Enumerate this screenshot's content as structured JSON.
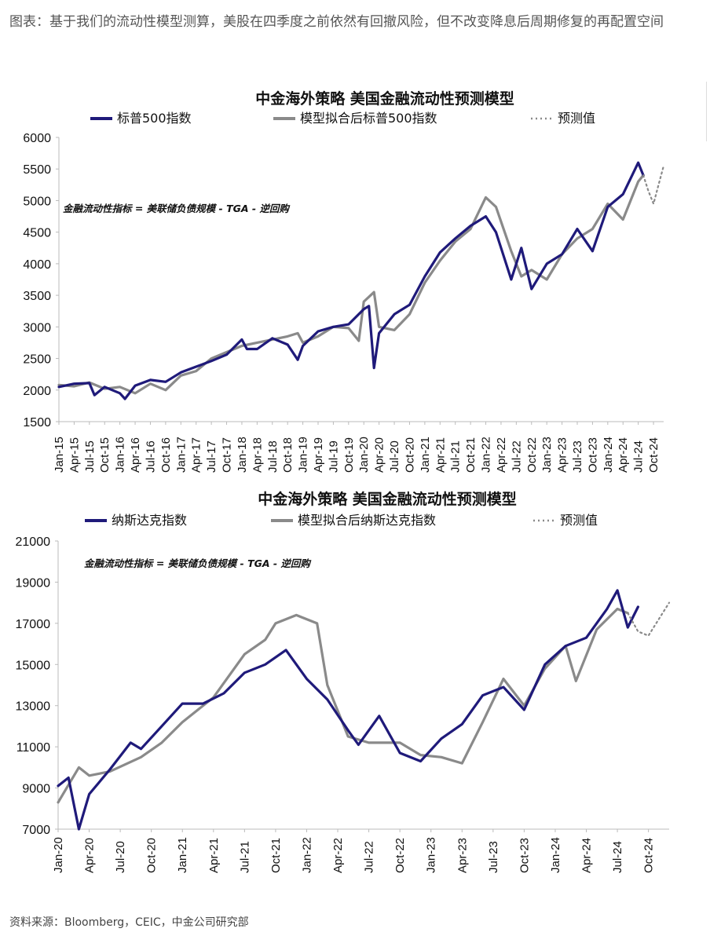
{
  "caption": "图表：基于我们的流动性模型测算，美股在四季度之前依然有回撤风险，但不改变降息后周期修复的再配置空间",
  "source": "资料来源：Bloomberg，CEIC，中金公司研究部",
  "colors": {
    "actual": "#1f1a7a",
    "model": "#8a8a8a",
    "forecast": "#8a8a8a"
  },
  "chart_data": [
    {
      "type": "line",
      "title": "中金海外策略  美国金融流动性预测模型",
      "annotation": "金融流动性指标 = 美联储负债规模 - TGA - 逆回购",
      "ylim": [
        1500,
        6000
      ],
      "yticks": [
        1500,
        2000,
        2500,
        3000,
        3500,
        4000,
        4500,
        5000,
        5500,
        6000
      ],
      "xlim": [
        "2015-01",
        "2024-12"
      ],
      "xticks": [
        "Jan-15",
        "Apr-15",
        "Jul-15",
        "Oct-15",
        "Jan-16",
        "Apr-16",
        "Jul-16",
        "Oct-16",
        "Jan-17",
        "Apr-17",
        "Jul-17",
        "Oct-17",
        "Jan-18",
        "Apr-18",
        "Jul-18",
        "Oct-18",
        "Jan-19",
        "Apr-19",
        "Jul-19",
        "Oct-19",
        "Jan-20",
        "Apr-20",
        "Jul-20",
        "Oct-20",
        "Jan-21",
        "Apr-21",
        "Jul-21",
        "Oct-21",
        "Jan-22",
        "Apr-22",
        "Jul-22",
        "Oct-22",
        "Jan-23",
        "Apr-23",
        "Jul-23",
        "Oct-23",
        "Jan-24",
        "Apr-24",
        "Jul-24",
        "Oct-24"
      ],
      "series": [
        {
          "name": "标普500指数",
          "style": "actual",
          "x": [
            "2015-01",
            "2015-04",
            "2015-07",
            "2015-08",
            "2015-10",
            "2016-01",
            "2016-02",
            "2016-04",
            "2016-07",
            "2016-10",
            "2017-01",
            "2017-04",
            "2017-07",
            "2017-10",
            "2018-01",
            "2018-02",
            "2018-04",
            "2018-07",
            "2018-10",
            "2018-12",
            "2019-01",
            "2019-04",
            "2019-07",
            "2019-10",
            "2020-01",
            "2020-02",
            "2020-03",
            "2020-04",
            "2020-07",
            "2020-10",
            "2021-01",
            "2021-04",
            "2021-07",
            "2021-10",
            "2022-01",
            "2022-03",
            "2022-06",
            "2022-08",
            "2022-10",
            "2023-01",
            "2023-04",
            "2023-07",
            "2023-10",
            "2024-01",
            "2024-04",
            "2024-07",
            "2024-08"
          ],
          "y": [
            2050,
            2100,
            2110,
            1920,
            2050,
            1950,
            1860,
            2070,
            2160,
            2130,
            2280,
            2370,
            2460,
            2560,
            2800,
            2650,
            2650,
            2820,
            2720,
            2480,
            2700,
            2930,
            3000,
            3040,
            3280,
            3330,
            2350,
            2900,
            3200,
            3350,
            3800,
            4180,
            4400,
            4600,
            4750,
            4500,
            3750,
            4250,
            3600,
            4000,
            4150,
            4550,
            4200,
            4900,
            5100,
            5600,
            5400
          ]
        },
        {
          "name": "模型拟合后标普500指数",
          "style": "model",
          "x": [
            "2015-01",
            "2015-04",
            "2015-07",
            "2015-10",
            "2016-01",
            "2016-04",
            "2016-07",
            "2016-10",
            "2017-01",
            "2017-04",
            "2017-07",
            "2017-10",
            "2018-01",
            "2018-04",
            "2018-07",
            "2018-10",
            "2018-12",
            "2019-01",
            "2019-04",
            "2019-07",
            "2019-10",
            "2019-12",
            "2020-01",
            "2020-03",
            "2020-04",
            "2020-07",
            "2020-10",
            "2021-01",
            "2021-04",
            "2021-07",
            "2021-10",
            "2022-01",
            "2022-03",
            "2022-06",
            "2022-08",
            "2022-10",
            "2023-01",
            "2023-04",
            "2023-07",
            "2023-10",
            "2024-01",
            "2024-04",
            "2024-07",
            "2024-08"
          ],
          "y": [
            2080,
            2060,
            2120,
            2020,
            2050,
            1950,
            2100,
            2000,
            2230,
            2300,
            2500,
            2600,
            2700,
            2750,
            2800,
            2850,
            2900,
            2750,
            2850,
            3000,
            2980,
            2780,
            3400,
            3550,
            3000,
            2950,
            3200,
            3700,
            4050,
            4350,
            4550,
            5050,
            4900,
            4200,
            3800,
            3900,
            3750,
            4150,
            4400,
            4550,
            4950,
            4700,
            5300,
            5400
          ]
        },
        {
          "name": "预测值",
          "style": "forecast",
          "x": [
            "2024-08",
            "2024-09",
            "2024-10",
            "2024-11",
            "2024-12"
          ],
          "y": [
            5400,
            5150,
            4950,
            5250,
            5550
          ]
        }
      ]
    },
    {
      "type": "line",
      "title": "中金海外策略  美国金融流动性预测模型",
      "annotation": "金融流动性指标 = 美联储负债规模 - TGA - 逆回购",
      "ylim": [
        7000,
        21000
      ],
      "yticks": [
        7000,
        9000,
        11000,
        13000,
        15000,
        17000,
        19000,
        21000
      ],
      "xlim": [
        "2020-01",
        "2024-12"
      ],
      "xticks": [
        "Jan-20",
        "Apr-20",
        "Jul-20",
        "Oct-20",
        "Jan-21",
        "Apr-21",
        "Jul-21",
        "Oct-21",
        "Jan-22",
        "Apr-22",
        "Jul-22",
        "Oct-22",
        "Jan-23",
        "Apr-23",
        "Jul-23",
        "Oct-23",
        "Jan-24",
        "Apr-24",
        "Jul-24",
        "Oct-24"
      ],
      "series": [
        {
          "name": "纳斯达克指数",
          "style": "actual",
          "x": [
            "2020-01",
            "2020-02",
            "2020-03",
            "2020-04",
            "2020-06",
            "2020-08",
            "2020-09",
            "2020-11",
            "2021-01",
            "2021-03",
            "2021-05",
            "2021-07",
            "2021-09",
            "2021-11",
            "2022-01",
            "2022-03",
            "2022-05",
            "2022-06",
            "2022-08",
            "2022-10",
            "2022-12",
            "2023-02",
            "2023-04",
            "2023-06",
            "2023-08",
            "2023-10",
            "2023-12",
            "2024-02",
            "2024-04",
            "2024-06",
            "2024-07",
            "2024-08",
            "2024-09"
          ],
          "y": [
            9100,
            9500,
            7000,
            8700,
            9900,
            11200,
            10900,
            12000,
            13100,
            13100,
            13600,
            14600,
            15000,
            15700,
            14300,
            13300,
            11800,
            11100,
            12500,
            10700,
            10300,
            11400,
            12100,
            13500,
            13900,
            12800,
            15000,
            15900,
            16300,
            17700,
            18600,
            16800,
            17800
          ]
        },
        {
          "name": "模型拟合后纳斯达克指数",
          "style": "model",
          "x": [
            "2020-01",
            "2020-03",
            "2020-04",
            "2020-06",
            "2020-09",
            "2020-11",
            "2021-01",
            "2021-04",
            "2021-07",
            "2021-09",
            "2021-10",
            "2021-12",
            "2022-02",
            "2022-03",
            "2022-05",
            "2022-07",
            "2022-10",
            "2022-12",
            "2023-02",
            "2023-04",
            "2023-06",
            "2023-08",
            "2023-10",
            "2023-12",
            "2024-02",
            "2024-03",
            "2024-05",
            "2024-07",
            "2024-08"
          ],
          "y": [
            8300,
            10000,
            9600,
            9800,
            10500,
            11200,
            12200,
            13400,
            15500,
            16200,
            17000,
            17400,
            17000,
            14000,
            11500,
            11200,
            11200,
            10600,
            10500,
            10200,
            12200,
            14300,
            13000,
            14800,
            15900,
            14200,
            16700,
            17700,
            17500
          ]
        },
        {
          "name": "预测值",
          "style": "forecast",
          "x": [
            "2024-08",
            "2024-09",
            "2024-10",
            "2024-11",
            "2024-12"
          ],
          "y": [
            17500,
            16600,
            16400,
            17200,
            18000
          ]
        }
      ]
    }
  ]
}
